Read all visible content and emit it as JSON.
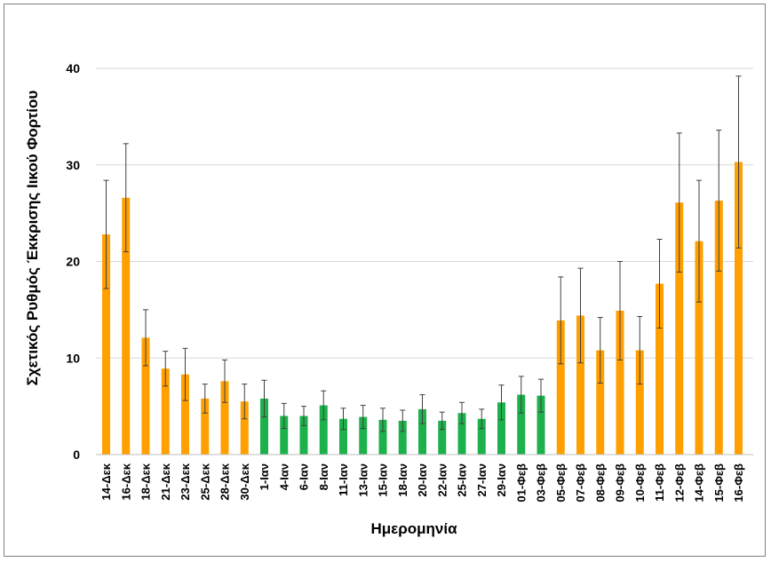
{
  "chart_data": {
    "type": "bar",
    "title": "",
    "xlabel": "Ημερομηνία",
    "ylabel": "Σχετικός Ρυθμός Έκκρισης Ιικού Φορτίου",
    "ylim": [
      0,
      40
    ],
    "yticks": [
      0,
      10,
      20,
      30,
      40
    ],
    "grid": true,
    "colors": {
      "orange": "#FF9F00",
      "green": "#1DB14B",
      "error": "#404040",
      "grid": "#D9D9D9"
    },
    "categories": [
      "14-Δεκ",
      "16-Δεκ",
      "18-Δεκ",
      "21-Δεκ",
      "23-Δεκ",
      "25-Δεκ",
      "28-Δεκ",
      "30-Δεκ",
      "1-Ιαν",
      "4-Ιαν",
      "6-Ιαν",
      "8-Ιαν",
      "11-Ιαν",
      "13-Ιαν",
      "15-Ιαν",
      "18-Ιαν",
      "20-Ιαν",
      "22-Ιαν",
      "25-Ιαν",
      "27-Ιαν",
      "29-Ιαν",
      "01-Φεβ",
      "03-Φεβ",
      "05-Φεβ",
      "07-Φεβ",
      "08-Φεβ",
      "09-Φεβ",
      "10-Φεβ",
      "11-Φεβ",
      "12-Φεβ",
      "14-Φεβ",
      "15-Φεβ",
      "16-Φεβ"
    ],
    "values": [
      22.8,
      26.6,
      12.1,
      8.9,
      8.3,
      5.8,
      7.6,
      5.5,
      5.8,
      4.0,
      4.0,
      5.1,
      3.7,
      3.9,
      3.6,
      3.5,
      4.7,
      3.5,
      4.3,
      3.7,
      5.4,
      6.2,
      6.1,
      13.9,
      14.4,
      10.8,
      14.9,
      10.8,
      17.7,
      26.1,
      22.1,
      26.3,
      30.3
    ],
    "errors": [
      5.6,
      5.6,
      2.9,
      1.8,
      2.7,
      1.5,
      2.2,
      1.8,
      1.9,
      1.3,
      1.0,
      1.5,
      1.1,
      1.2,
      1.2,
      1.1,
      1.5,
      0.9,
      1.1,
      1.0,
      1.8,
      1.9,
      1.7,
      4.5,
      4.9,
      3.4,
      5.1,
      3.5,
      4.6,
      7.2,
      6.3,
      7.3,
      8.9
    ],
    "bar_color": [
      "orange",
      "orange",
      "orange",
      "orange",
      "orange",
      "orange",
      "orange",
      "orange",
      "green",
      "green",
      "green",
      "green",
      "green",
      "green",
      "green",
      "green",
      "green",
      "green",
      "green",
      "green",
      "green",
      "green",
      "green",
      "orange",
      "orange",
      "orange",
      "orange",
      "orange",
      "orange",
      "orange",
      "orange",
      "orange",
      "orange"
    ]
  }
}
